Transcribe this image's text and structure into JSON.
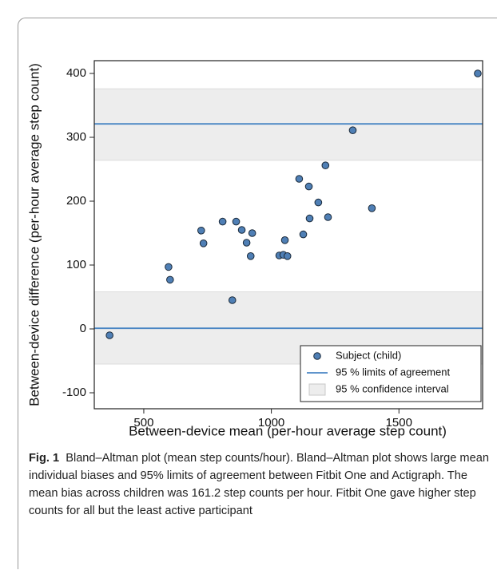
{
  "chart_data": {
    "type": "scatter",
    "xlabel": "Between-device mean (per-hour average step count)",
    "ylabel": "Between-device difference (per-hour average step count)",
    "xlim": [
      306,
      1828
    ],
    "ylim": [
      -125,
      420
    ],
    "xticks": [
      500,
      1000,
      1500
    ],
    "yticks": [
      -100,
      0,
      100,
      200,
      300,
      400
    ],
    "series": [
      {
        "name": "Subject (child)",
        "color": "#4f7fb5",
        "x": [
          366,
          597,
          603,
          725,
          734,
          809,
          862,
          884,
          903,
          925,
          919,
          847,
          1031,
          1047,
          1063,
          1053,
          1109,
          1147,
          1125,
          1150,
          1184,
          1212,
          1222,
          1319,
          1394,
          1809
        ],
        "values": [
          -10,
          97,
          77,
          154,
          134,
          168,
          168,
          155,
          135,
          150,
          114,
          45,
          115,
          116,
          114,
          139,
          235,
          223,
          148,
          173,
          198,
          256,
          175,
          311,
          189,
          400
        ]
      }
    ],
    "reference_lines": {
      "name": "95 % limits of agreement",
      "color": "#4a86c4",
      "values": [
        321,
        1
      ]
    },
    "bands": {
      "name": "95 % confidence interval",
      "color": "#ededed",
      "ranges": [
        [
          264,
          376
        ],
        [
          -55,
          58
        ]
      ]
    },
    "legend": "lower right"
  },
  "caption": {
    "label": "Fig. 1",
    "text": "Bland–Altman plot (mean step counts/hour). Bland–Altman plot shows large mean individual biases and 95% limits of agreement between Fitbit One and Actigraph. The mean bias across children was 161.2 step counts per hour. Fitbit One gave higher step counts for all but the least active participant"
  }
}
